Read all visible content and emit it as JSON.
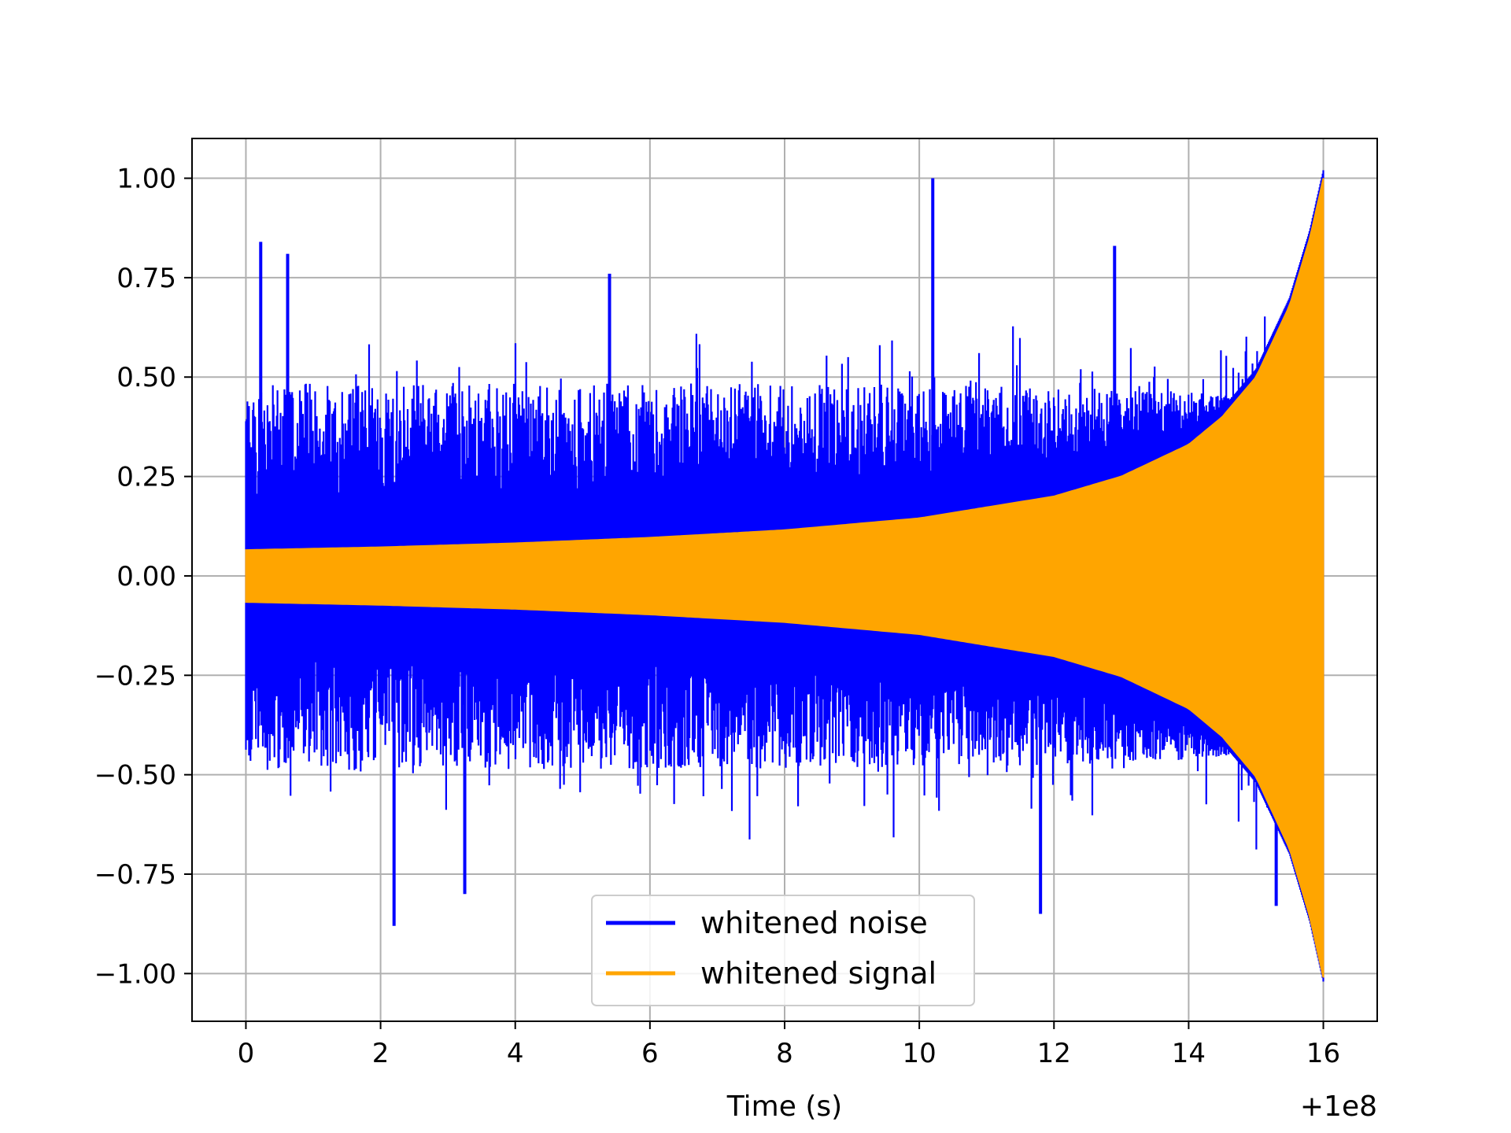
{
  "chart_data": {
    "type": "line",
    "title": "",
    "xlabel": "Time (s)",
    "ylabel": "",
    "x_offset_label": "+1e8",
    "xlim": [
      -0.8,
      16.8
    ],
    "ylim": [
      -1.12,
      1.1
    ],
    "x_ticks": [
      0,
      2,
      4,
      6,
      8,
      10,
      12,
      14,
      16
    ],
    "x_tick_labels": [
      "0",
      "2",
      "4",
      "6",
      "8",
      "10",
      "12",
      "14",
      "16"
    ],
    "y_ticks": [
      1.0,
      0.75,
      0.5,
      0.25,
      0.0,
      -0.25,
      -0.5,
      -0.75,
      -1.0
    ],
    "y_tick_labels": [
      "1.00",
      "0.75",
      "0.50",
      "0.25",
      "0.00",
      "−0.25",
      "−0.50",
      "−0.75",
      "−1.00"
    ],
    "grid": true,
    "legend_position": "lower-center",
    "x_range_data": [
      0,
      16
    ],
    "series": [
      {
        "name": "whitened noise",
        "color": "#0000ff",
        "description_kind": "noise",
        "typical_peak": 0.45,
        "peaks": [
          {
            "x": 0.22,
            "y": 0.84
          },
          {
            "x": 0.62,
            "y": 0.81
          },
          {
            "x": 10.2,
            "y": 1.0
          },
          {
            "x": 12.9,
            "y": 0.83
          },
          {
            "x": 5.4,
            "y": 0.76
          },
          {
            "x": 2.2,
            "y": -0.88
          },
          {
            "x": 11.8,
            "y": -0.85
          },
          {
            "x": 3.25,
            "y": -0.8
          },
          {
            "x": 15.3,
            "y": -0.83
          }
        ]
      },
      {
        "name": "whitened signal",
        "color": "#ffa500",
        "description_kind": "chirp",
        "envelope": [
          {
            "x": 0,
            "y": 0.065
          },
          {
            "x": 2,
            "y": 0.072
          },
          {
            "x": 4,
            "y": 0.082
          },
          {
            "x": 6,
            "y": 0.096
          },
          {
            "x": 8,
            "y": 0.115
          },
          {
            "x": 10,
            "y": 0.145
          },
          {
            "x": 12,
            "y": 0.2
          },
          {
            "x": 13,
            "y": 0.25
          },
          {
            "x": 14,
            "y": 0.33
          },
          {
            "x": 14.5,
            "y": 0.4
          },
          {
            "x": 15,
            "y": 0.5
          },
          {
            "x": 15.5,
            "y": 0.68
          },
          {
            "x": 15.8,
            "y": 0.85
          },
          {
            "x": 16,
            "y": 1.0
          }
        ]
      }
    ]
  },
  "legend": {
    "items": [
      {
        "label": "whitened noise",
        "color": "#0000ff"
      },
      {
        "label": "whitened signal",
        "color": "#ffa500"
      }
    ]
  }
}
